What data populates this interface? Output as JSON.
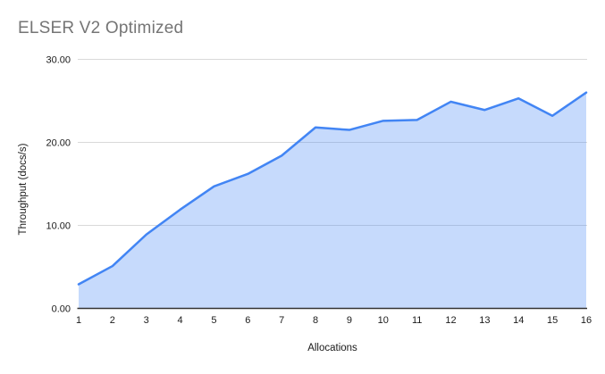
{
  "title": "ELSER V2 Optimized",
  "chart_data": {
    "type": "area",
    "title": "ELSER V2 Optimized",
    "xlabel": "Allocations",
    "ylabel": "Throughput (docs/s)",
    "x": [
      1,
      2,
      3,
      4,
      5,
      6,
      7,
      8,
      9,
      10,
      11,
      12,
      13,
      14,
      15,
      16
    ],
    "xtick_labels": [
      "1",
      "2",
      "3",
      "4",
      "5",
      "6",
      "7",
      "8",
      "9",
      "10",
      "11",
      "12",
      "13",
      "14",
      "15",
      "16"
    ],
    "values": [
      2.9,
      5.1,
      8.9,
      11.9,
      14.7,
      16.2,
      18.4,
      21.8,
      21.5,
      22.6,
      22.7,
      24.9,
      23.9,
      25.3,
      23.2,
      26.0
    ],
    "ylim": [
      0,
      30
    ],
    "yticks": [
      0,
      10,
      20,
      30
    ],
    "ytick_labels": [
      "0.00",
      "10.00",
      "20.00",
      "30.00"
    ],
    "grid": "horizontal",
    "legend": "none",
    "colors": {
      "line": "#4285f4",
      "fill": "rgba(66,133,244,0.3)",
      "title_text": "#757575",
      "tick_label": "#1a1a1a",
      "axis_title": "#1a1a1a",
      "grid_line": "#d9d9d9",
      "axis_line": "#333333",
      "background": "#ffffff"
    }
  }
}
